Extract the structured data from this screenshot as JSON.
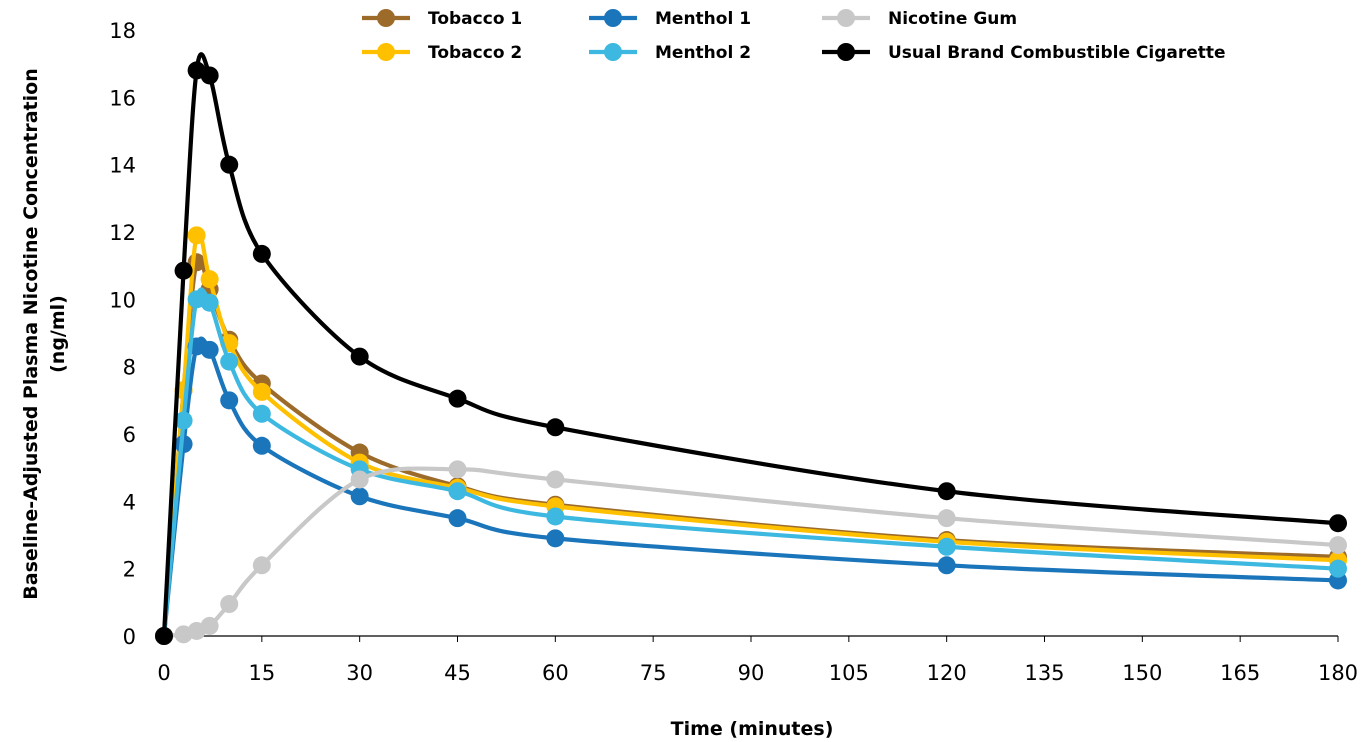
{
  "chart_data": {
    "type": "line",
    "title": "",
    "xlabel": "Time (minutes)",
    "ylabel_lines": [
      "Baseline-Adjusted Plasma Nicotine Concentration",
      "(ng/ml)"
    ],
    "xlim": [
      0,
      180
    ],
    "ylim": [
      0,
      18
    ],
    "x_ticks": [
      0,
      15,
      30,
      45,
      60,
      75,
      90,
      105,
      120,
      135,
      150,
      165,
      180
    ],
    "y_ticks": [
      0,
      2,
      4,
      6,
      8,
      10,
      12,
      14,
      16,
      18
    ],
    "grid": false,
    "legend_position": "top",
    "series": [
      {
        "name": "Tobacco 1",
        "color": "#9C6B2A",
        "x": [
          0,
          3,
          5,
          7,
          10,
          15,
          30,
          45,
          60,
          120,
          180
        ],
        "y": [
          0,
          7.3,
          11.1,
          10.3,
          8.8,
          7.5,
          5.45,
          4.45,
          3.9,
          2.85,
          2.35
        ]
      },
      {
        "name": "Tobacco 2",
        "color": "#FFC000",
        "x": [
          0,
          3,
          5,
          7,
          10,
          15,
          30,
          45,
          60,
          120,
          180
        ],
        "y": [
          0,
          7.3,
          11.9,
          10.6,
          8.7,
          7.25,
          5.15,
          4.4,
          3.85,
          2.8,
          2.25
        ]
      },
      {
        "name": "Menthol 1",
        "color": "#1A75BB",
        "x": [
          0,
          3,
          5,
          7,
          10,
          15,
          30,
          45,
          60,
          120,
          180
        ],
        "y": [
          0,
          5.7,
          8.6,
          8.5,
          7.0,
          5.65,
          4.15,
          3.5,
          2.9,
          2.1,
          1.65
        ]
      },
      {
        "name": "Menthol 2",
        "color": "#3DB8E0",
        "x": [
          0,
          3,
          5,
          7,
          10,
          15,
          30,
          45,
          60,
          120,
          180
        ],
        "y": [
          0,
          6.4,
          10.0,
          9.9,
          8.15,
          6.6,
          4.95,
          4.3,
          3.55,
          2.65,
          2.0
        ]
      },
      {
        "name": "Nicotine Gum",
        "color": "#C8C8C8",
        "x": [
          0,
          3,
          5,
          7,
          10,
          15,
          30,
          45,
          60,
          120,
          180
        ],
        "y": [
          0,
          0.05,
          0.15,
          0.3,
          0.95,
          2.1,
          4.65,
          4.95,
          4.65,
          3.5,
          2.7
        ]
      },
      {
        "name": "Usual Brand Combustible Cigarette",
        "color": "#000000",
        "x": [
          0,
          3,
          5,
          7,
          10,
          15,
          30,
          45,
          60,
          120,
          180
        ],
        "y": [
          0,
          10.85,
          16.8,
          16.65,
          14.0,
          11.35,
          8.3,
          7.05,
          6.2,
          4.3,
          3.35
        ]
      }
    ]
  }
}
